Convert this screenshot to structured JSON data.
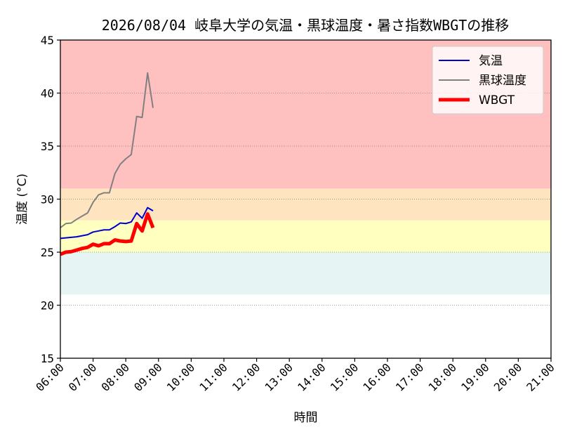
{
  "chart_data": {
    "type": "line",
    "title": "2026/08/04 岐阜大学の気温・黒球温度・暑さ指数WBGTの推移",
    "xlabel": "時間",
    "ylabel": "温度 (°C)",
    "ylim": [
      15,
      45
    ],
    "yticks": [
      15,
      20,
      25,
      30,
      35,
      40,
      45
    ],
    "xticks": [
      "06:00",
      "07:00",
      "08:00",
      "09:00",
      "10:00",
      "11:00",
      "12:00",
      "13:00",
      "14:00",
      "15:00",
      "16:00",
      "17:00",
      "18:00",
      "19:00",
      "20:00",
      "21:00"
    ],
    "grid": "horizontal dotted",
    "legend_position": "top-right",
    "bands": [
      {
        "from": 21,
        "to": 25,
        "color": "#e6f4f4"
      },
      {
        "from": 25,
        "to": 28,
        "color": "#ffffc0"
      },
      {
        "from": 28,
        "to": 31,
        "color": "#ffe4c0"
      },
      {
        "from": 31,
        "to": 45,
        "color": "#ffc0c0"
      }
    ],
    "x": [
      "06:00",
      "06:10",
      "06:20",
      "06:30",
      "06:40",
      "06:50",
      "07:00",
      "07:10",
      "07:20",
      "07:30",
      "07:40",
      "07:50",
      "08:00",
      "08:10",
      "08:20",
      "08:30",
      "08:40",
      "08:50",
      "09:00"
    ],
    "series": [
      {
        "name": "気温",
        "color": "#0000cc",
        "width": 2,
        "values": [
          26.3,
          26.35,
          26.4,
          26.45,
          26.55,
          26.65,
          26.9,
          27.0,
          27.1,
          27.1,
          27.4,
          27.75,
          27.7,
          27.85,
          28.7,
          28.2,
          29.2,
          28.9,
          null
        ]
      },
      {
        "name": "黒球温度",
        "color": "#808080",
        "width": 2,
        "values": [
          27.3,
          27.7,
          27.75,
          28.1,
          28.4,
          28.7,
          29.7,
          30.4,
          30.6,
          30.6,
          32.4,
          33.3,
          33.8,
          34.2,
          37.8,
          37.7,
          41.9,
          38.6,
          null
        ]
      },
      {
        "name": "WBGT",
        "color": "#ff0000",
        "width": 5,
        "values": [
          24.8,
          25.0,
          25.05,
          25.2,
          25.35,
          25.45,
          25.75,
          25.6,
          25.8,
          25.8,
          26.15,
          26.05,
          26.0,
          26.05,
          27.7,
          27.0,
          28.6,
          27.3,
          null
        ]
      }
    ]
  }
}
